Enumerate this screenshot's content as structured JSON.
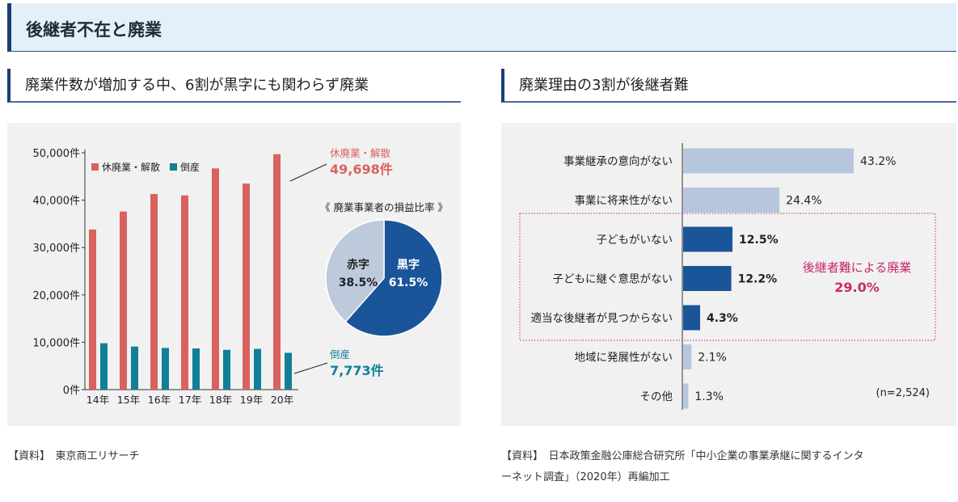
{
  "header": {
    "title": "後継者不在と廃業"
  },
  "left": {
    "subtitle": "廃業件数が増加する中、6割が黒字にも関わらず廃業",
    "source": "【資料】　東京商工リサーチ"
  },
  "right": {
    "subtitle": "廃業理由の3割が後継者難",
    "source_line1": "【資料】　日本政策金融公庫総合研究所「中小企業の事業承継に関するインタ",
    "source_line2": "ーネット調査」（2020年）再編加工"
  },
  "chart_data": [
    {
      "type": "bar",
      "categories": [
        "14年",
        "15年",
        "16年",
        "17年",
        "18年",
        "19年",
        "20年"
      ],
      "series": [
        {
          "name": "休廃業・解散",
          "values": [
            33800,
            37600,
            41300,
            41000,
            46700,
            43500,
            49698
          ],
          "color": "#d9625f"
        },
        {
          "name": "倒産",
          "values": [
            9800,
            9100,
            8800,
            8700,
            8400,
            8600,
            7773
          ],
          "color": "#117f97"
        }
      ],
      "ylim": [
        0,
        50000
      ],
      "yticks": [
        {
          "value": 0,
          "label": "0件"
        },
        {
          "value": 10000,
          "label": "10,000件"
        },
        {
          "value": 20000,
          "label": "20,000件"
        },
        {
          "value": 30000,
          "label": "30,000件"
        },
        {
          "value": 40000,
          "label": "40,000件"
        },
        {
          "value": 50000,
          "label": "50,000件"
        }
      ],
      "legend_placement": "top-left",
      "annotations": [
        {
          "label": "休廃業・解散",
          "value": "49,698件",
          "color": "#d9625f"
        },
        {
          "label": "倒産",
          "value": "7,773件",
          "color": "#117f97"
        }
      ]
    },
    {
      "type": "pie",
      "title": "《 廃業事業者の損益比率 》",
      "slices": [
        {
          "name": "黒字",
          "value": 61.5,
          "label": "61.5%",
          "color": "#1a5599"
        },
        {
          "name": "赤字",
          "value": 38.5,
          "label": "38.5%",
          "color": "#bccadb"
        }
      ]
    },
    {
      "type": "bar",
      "orientation": "horizontal",
      "categories": [
        "事業継承の意向がない",
        "事業に将来性がない",
        "子どもがいない",
        "子どもに継ぐ意思がない",
        "適当な後継者が見つからない",
        "地域に発展性がない",
        "その他"
      ],
      "values": [
        43.2,
        24.4,
        12.5,
        12.2,
        4.3,
        2.1,
        1.3
      ],
      "labels": [
        "43.2%",
        "24.4%",
        "12.5%",
        "12.2%",
        "4.3%",
        "2.1%",
        "1.3%"
      ],
      "highlighted": [
        false,
        false,
        true,
        true,
        true,
        false,
        false
      ],
      "colors": {
        "normal": "#b6c6dc",
        "highlight": "#1a5599",
        "group": "#c8286b"
      },
      "group_annotation": {
        "line1": "後継者難による廃業",
        "line2": "29.0%"
      },
      "note": "(n=2,524)"
    }
  ]
}
